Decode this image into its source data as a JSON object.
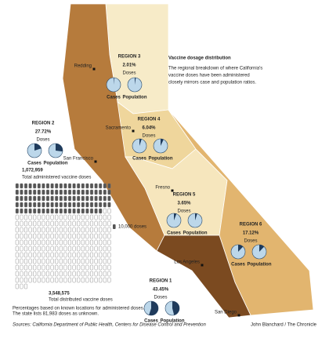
{
  "header": {
    "title": "Vaccine dosage distribution",
    "subtitle": [
      "The regional breakdown of where California's",
      "vaccine doses have been administered",
      "closely mirrors case and population ratios."
    ]
  },
  "regions": [
    {
      "name": "REGION 3",
      "share": "2.01%",
      "doses": "Doses",
      "cases": {
        "label": "Cases",
        "value": 1.5
      },
      "population": {
        "label": "Population",
        "value": 2.5
      },
      "color": "#f7ebc8"
    },
    {
      "name": "REGION 2",
      "share": "27.72%",
      "doses": "Doses",
      "cases": {
        "label": "Cases",
        "value": 20
      },
      "population": {
        "label": "Population",
        "value": 27
      },
      "color": "#b67b3c"
    },
    {
      "name": "REGION 4",
      "share": "6.04%",
      "doses": "Doses",
      "cases": {
        "label": "Cases",
        "value": 5
      },
      "population": {
        "label": "Population",
        "value": 7
      },
      "color": "#efd69c"
    },
    {
      "name": "REGION 5",
      "share": "3.65%",
      "doses": "Doses",
      "cases": {
        "label": "Cases",
        "value": 6
      },
      "population": {
        "label": "Population",
        "value": 5
      },
      "color": "#f6e6bd"
    },
    {
      "name": "REGION 6",
      "share": "17.12%",
      "doses": "Doses",
      "cases": {
        "label": "Cases",
        "value": 12
      },
      "population": {
        "label": "Population",
        "value": 12
      },
      "color": "#e2b56f"
    },
    {
      "name": "REGION 1",
      "share": "43.45%",
      "doses": "Doses",
      "cases": {
        "label": "Cases",
        "value": 55
      },
      "population": {
        "label": "Population",
        "value": 46
      },
      "color": "#7b4a20"
    }
  ],
  "cities": [
    "Redding",
    "Sacramento",
    "San Francisco",
    "Fresno",
    "Los Angeles",
    "San Diego"
  ],
  "totals": {
    "administered": {
      "value": 1072959,
      "label": "1,072,959"
    },
    "administered_label": "Total administered vaccine doses",
    "distributed": {
      "value": 3548575,
      "label": "3,548,575"
    },
    "distributed_label": "Total distributed vaccine doses",
    "icon_unit": {
      "value": 10000,
      "label": "10,000 doses"
    }
  },
  "notes": [
    "Percentages based on known locations for administered doses.",
    "The state lists 81,983 doses as unknown."
  ],
  "footer": {
    "sources": "Sources: California Department of Public Health, Centers for Disease Control and Prevention",
    "credit": "John Blanchard / The Chronicle"
  }
}
